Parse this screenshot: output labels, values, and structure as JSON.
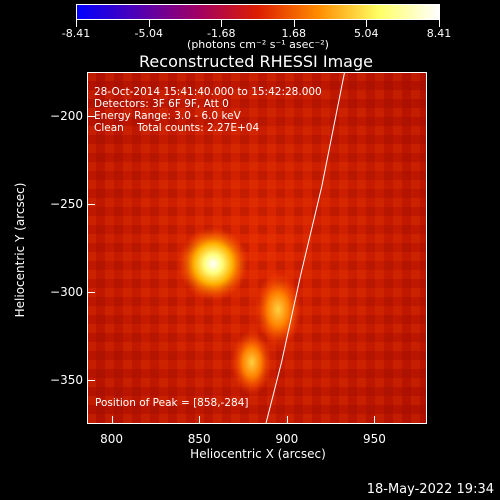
{
  "colorbar": {
    "ticks": [
      "-8.41",
      "-5.04",
      "-1.68",
      "1.68",
      "5.04",
      "8.41"
    ],
    "tick_values": [
      -8.41,
      -5.04,
      -1.68,
      1.68,
      5.04,
      8.41
    ],
    "range": [
      -8.41,
      8.41
    ],
    "unit_label": "(photons cm⁻² s⁻¹ asec⁻²)",
    "colors": [
      "#0000ff",
      "#5000b4",
      "#a00064",
      "#dc1e00",
      "#ff8c00",
      "#ffff64",
      "#ffffff"
    ]
  },
  "chart_data": {
    "type": "heatmap",
    "title": "Reconstructed RHESSI Image",
    "xlabel": "Heliocentric X (arcsec)",
    "ylabel": "Heliocentric Y (arcsec)",
    "xlim": [
      786,
      980
    ],
    "ylim": [
      -375,
      -175
    ],
    "xticks": [
      800,
      850,
      900,
      950
    ],
    "yticks": [
      -200,
      -250,
      -300,
      -350
    ],
    "info_lines": [
      "28-Oct-2014 15:41:40.000 to 15:42:28.000",
      "Detectors: 3F 6F 9F, Att 0",
      "Energy Range: 3.0 - 6.0 keV",
      "Clean    Total counts: 2.27E+04"
    ],
    "peak_label": "Position of Peak = [858,-284]",
    "peak": [
      858,
      -284
    ],
    "sources": [
      {
        "x": 858,
        "y": -284,
        "intensity": 8.41
      },
      {
        "x": 895,
        "y": -310,
        "intensity": 4.5
      },
      {
        "x": 880,
        "y": -340,
        "intensity": 3.5
      }
    ],
    "limb_curve": [
      {
        "x": 933,
        "y": -175
      },
      {
        "x": 920,
        "y": -240
      },
      {
        "x": 908,
        "y": -290
      },
      {
        "x": 897,
        "y": -340
      },
      {
        "x": 888,
        "y": -375
      }
    ]
  },
  "timestamp": "18-May-2022 19:34"
}
